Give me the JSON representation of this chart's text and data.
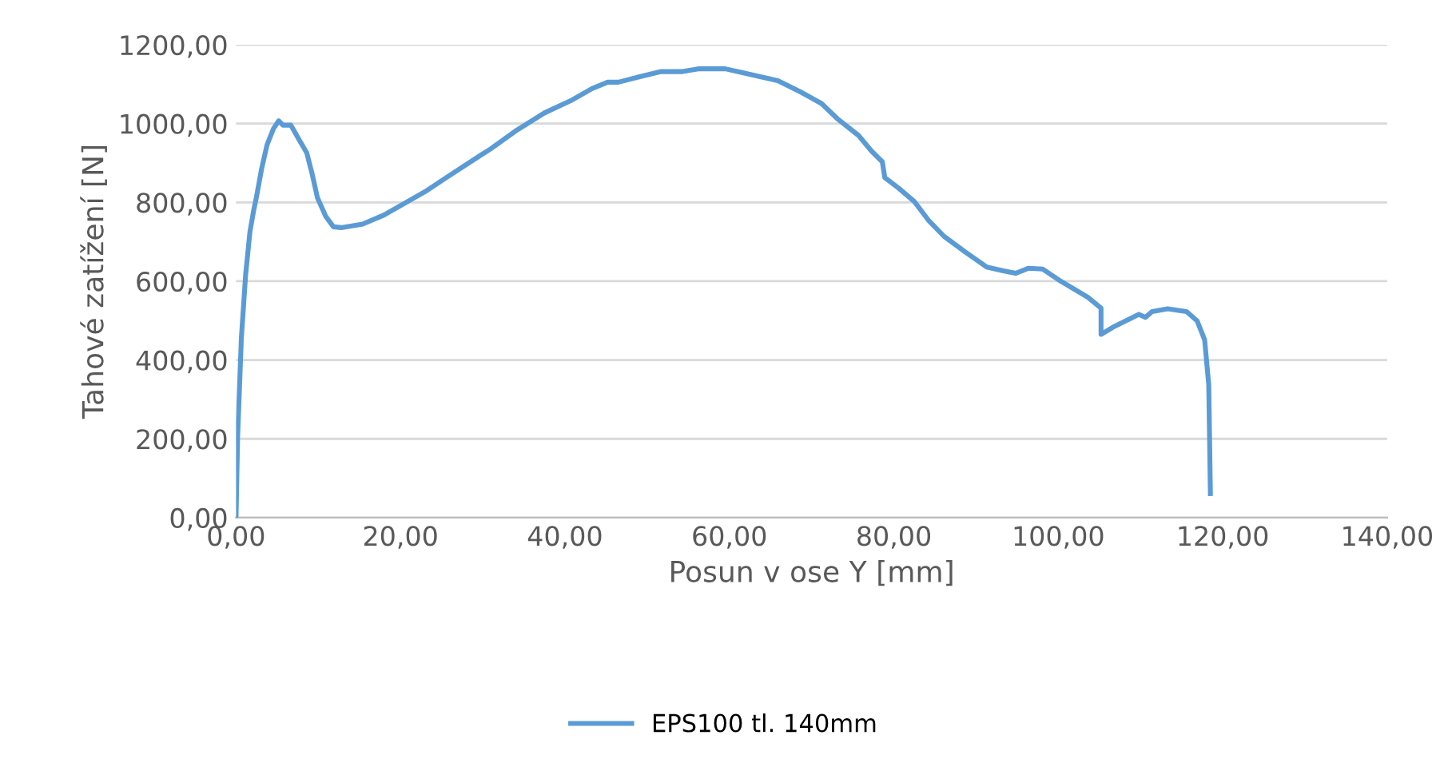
{
  "chart_data": {
    "type": "line",
    "xlabel": "Posun v ose Y [mm]",
    "ylabel": "Tahové zatížení [N]",
    "xlim": [
      0,
      140
    ],
    "ylim": [
      0,
      1200
    ],
    "xticks": [
      {
        "value": 0,
        "label": "0,00"
      },
      {
        "value": 20,
        "label": "20,00"
      },
      {
        "value": 40,
        "label": "40,00"
      },
      {
        "value": 60,
        "label": "60,00"
      },
      {
        "value": 80,
        "label": "80,00"
      },
      {
        "value": 100,
        "label": "100,00"
      },
      {
        "value": 120,
        "label": "120,00"
      },
      {
        "value": 140,
        "label": "140,00"
      }
    ],
    "yticks": [
      {
        "value": 0,
        "label": "0,00"
      },
      {
        "value": 200,
        "label": "200,00"
      },
      {
        "value": 400,
        "label": "400,00"
      },
      {
        "value": 600,
        "label": "600,00"
      },
      {
        "value": 800,
        "label": "800,00"
      },
      {
        "value": 1000,
        "label": "1000,00"
      },
      {
        "value": 1200,
        "label": "1200,00"
      }
    ],
    "grid": "y",
    "legend": "bottom",
    "marker": "none",
    "line_style": "solid",
    "series": [
      {
        "name": "EPS100 tl. 140mm",
        "color": "#5b9bd5",
        "x": [
          0,
          0.19,
          0.65,
          1.17,
          1.69,
          2.14,
          2.47,
          3.12,
          3.77,
          4.55,
          5.19,
          5.7,
          6.68,
          7.65,
          8.6,
          9.26,
          9.9,
          10.9,
          11.85,
          12.8,
          15.4,
          18.0,
          20.6,
          23.2,
          25.8,
          29.7,
          30.98,
          34.2,
          37.5,
          40.7,
          43.3,
          45.2,
          46.5,
          49.1,
          51.7,
          54.3,
          56.2,
          59.5,
          61.4,
          65.9,
          68.6,
          71.2,
          73.1,
          75.7,
          77.3,
          78.6,
          78.9,
          80.6,
          82.5,
          84.2,
          86.1,
          88.7,
          91.3,
          93.2,
          94.8,
          96.4,
          98.1,
          100.3,
          103.6,
          105.2,
          105.2,
          106.8,
          109.8,
          110.6,
          111.4,
          113.3,
          115.6,
          116.9,
          117.8,
          118.3,
          118.5
        ],
        "values": [
          0,
          201,
          456,
          617,
          725,
          779,
          812,
          886,
          946,
          987,
          1007,
          996,
          996,
          960,
          926,
          872,
          812,
          765,
          738,
          736,
          745,
          768,
          799,
          830,
          866,
          919,
          936,
          984,
          1027,
          1058,
          1089,
          1105,
          1105,
          1119,
          1132,
          1132,
          1139,
          1139,
          1130,
          1109,
          1081,
          1051,
          1013,
          970,
          930,
          903,
          863,
          836,
          802,
          755,
          714,
          674,
          636,
          627,
          620,
          633,
          631,
          600,
          559,
          532,
          465,
          485,
          516,
          508,
          523,
          530,
          523,
          499,
          451,
          337,
          61
        ]
      }
    ]
  }
}
